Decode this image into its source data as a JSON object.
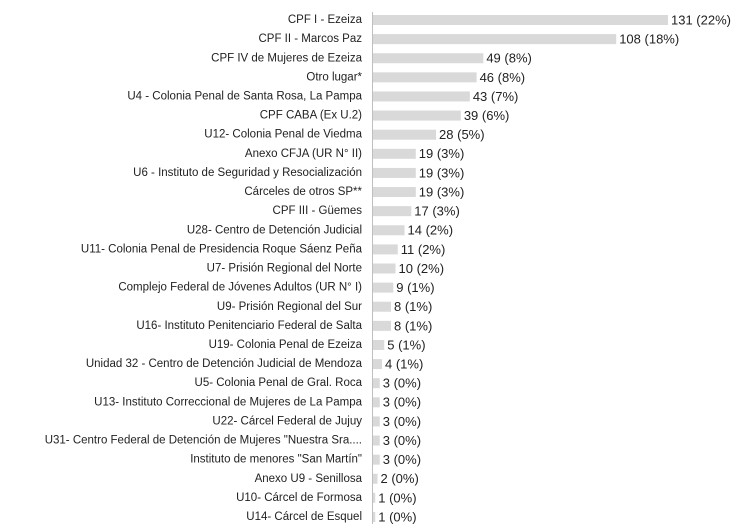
{
  "chart_data": {
    "type": "barh",
    "color": "#d9d9d9",
    "categories": [
      "CPF I - Ezeiza",
      "CPF II - Marcos Paz",
      "CPF IV de Mujeres de Ezeiza",
      "Otro lugar*",
      "U4 - Colonia Penal de Santa Rosa, La Pampa",
      "CPF CABA (Ex U.2)",
      "U12- Colonia Penal de Viedma",
      "Anexo CFJA (UR N° II)",
      "U6 - Instituto de Seguridad y Resocialización",
      "Cárceles de otros SP**",
      "CPF III - Güemes",
      "U28- Centro de Detención Judicial",
      "U11- Colonia Penal de Presidencia Roque Sáenz Peña",
      "U7- Prisión Regional del Norte",
      "Complejo Federal de Jóvenes Adultos (UR N° I)",
      "U9- Prisión Regional del Sur",
      "U16- Instituto Penitenciario Federal de Salta",
      "U19- Colonia Penal de Ezeiza",
      "Unidad 32 - Centro de Detención Judicial de Mendoza",
      "U5- Colonia Penal de Gral. Roca",
      "U13- Instituto Correccional de Mujeres de La Pampa",
      "U22- Cárcel Federal de Jujuy",
      "U31- Centro Federal de Detención de Mujeres \"Nuestra Sra....",
      "Instituto de menores \"San Martín\"",
      "Anexo U9 - Senillosa",
      "U10- Cárcel de Formosa",
      "U14- Cárcel de Esquel"
    ],
    "values": [
      131,
      108,
      49,
      46,
      43,
      39,
      28,
      19,
      19,
      19,
      17,
      14,
      11,
      10,
      9,
      8,
      8,
      5,
      4,
      3,
      3,
      3,
      3,
      3,
      2,
      1,
      1
    ],
    "value_labels": [
      "131 (22%)",
      "108 (18%)",
      "49 (8%)",
      "46 (8%)",
      "43 (7%)",
      "39 (6%)",
      "28 (5%)",
      "19 (3%)",
      "19 (3%)",
      "19 (3%)",
      "17 (3%)",
      "14 (2%)",
      "11 (2%)",
      "10 (2%)",
      "9 (1%)",
      "8 (1%)",
      "8 (1%)",
      "5 (1%)",
      "4 (1%)",
      "3 (0%)",
      "3 (0%)",
      "3 (0%)",
      "3 (0%)",
      "3 (0%)",
      "2 (0%)",
      "1 (0%)",
      "1 (0%)"
    ]
  }
}
